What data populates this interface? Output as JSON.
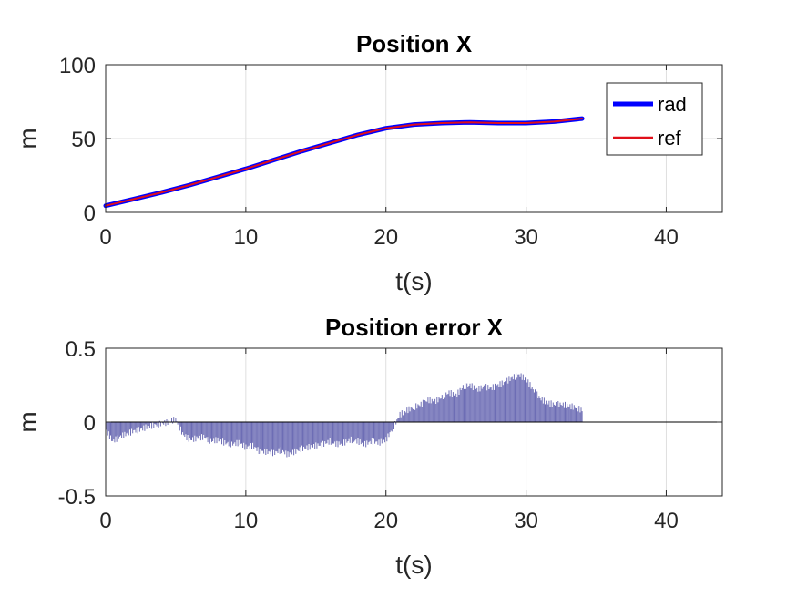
{
  "chart_data": [
    {
      "type": "line",
      "title": "Position X",
      "xlabel": "t(s)",
      "ylabel": "m",
      "xlim": [
        0,
        44
      ],
      "ylim": [
        0,
        100
      ],
      "xticks": [
        "0",
        "10",
        "20",
        "30",
        "40"
      ],
      "yticks": [
        "0",
        "50",
        "100"
      ],
      "grid": true,
      "legend": "top-right",
      "series": [
        {
          "name": "rad",
          "color": "#0000ff",
          "x": [
            0,
            2,
            4,
            6,
            8,
            10,
            12,
            14,
            16,
            18,
            20,
            22,
            24,
            26,
            28,
            30,
            32,
            34
          ],
          "y": [
            4.5,
            9,
            13.5,
            18.5,
            24,
            29.5,
            35.5,
            41.5,
            47,
            52.5,
            57,
            59.5,
            60.5,
            61,
            60.5,
            60.5,
            61.5,
            63.5
          ]
        },
        {
          "name": "ref",
          "color": "#e0101a",
          "x": [
            0,
            2,
            4,
            6,
            8,
            10,
            12,
            14,
            16,
            18,
            20,
            22,
            24,
            26,
            28,
            30,
            32,
            34
          ],
          "y": [
            4.5,
            9,
            13.5,
            18.5,
            24,
            29.5,
            35.5,
            41.5,
            47,
            52.5,
            57,
            59.5,
            60.5,
            61,
            60.5,
            60.5,
            61.5,
            63.5
          ]
        }
      ]
    },
    {
      "type": "bar",
      "title": "Position error X",
      "xlabel": "t(s)",
      "ylabel": "m",
      "xlim": [
        0,
        44
      ],
      "ylim": [
        -0.5,
        0.5
      ],
      "xticks": [
        "0",
        "10",
        "20",
        "30",
        "40"
      ],
      "yticks": [
        "-0.5",
        "0",
        "0.5"
      ],
      "grid": true,
      "bar_color": "#6d6db5",
      "series": [
        {
          "x": [
            0,
            0.5,
            1,
            1.5,
            2,
            2.5,
            3,
            3.5,
            4,
            4.5,
            5,
            5.5,
            6,
            6.5,
            7,
            7.5,
            8,
            8.5,
            9,
            9.5,
            10,
            10.5,
            11,
            11.5,
            12,
            12.5,
            13,
            13.5,
            14,
            14.5,
            15,
            15.5,
            16,
            16.5,
            17,
            17.5,
            18,
            18.5,
            19,
            19.5,
            20,
            20.5,
            21,
            21.5,
            22,
            22.5,
            23,
            23.5,
            24,
            24.5,
            25,
            25.5,
            26,
            26.5,
            27,
            27.5,
            28,
            28.5,
            29,
            29.5,
            30,
            30.5,
            31,
            31.5,
            32,
            32.5,
            33,
            33.5,
            34
          ],
          "values": [
            -0.05,
            -0.13,
            -0.1,
            -0.08,
            -0.06,
            -0.05,
            -0.03,
            -0.02,
            -0.01,
            0.0,
            0.02,
            -0.08,
            -0.12,
            -0.11,
            -0.1,
            -0.13,
            -0.12,
            -0.14,
            -0.15,
            -0.14,
            -0.17,
            -0.16,
            -0.2,
            -0.2,
            -0.21,
            -0.19,
            -0.22,
            -0.2,
            -0.18,
            -0.17,
            -0.16,
            -0.15,
            -0.13,
            -0.15,
            -0.14,
            -0.12,
            -0.13,
            -0.15,
            -0.13,
            -0.14,
            -0.12,
            -0.04,
            0.05,
            0.08,
            0.1,
            0.12,
            0.15,
            0.14,
            0.17,
            0.2,
            0.18,
            0.24,
            0.25,
            0.22,
            0.24,
            0.23,
            0.25,
            0.27,
            0.3,
            0.32,
            0.29,
            0.22,
            0.16,
            0.13,
            0.12,
            0.12,
            0.11,
            0.1,
            0.08
          ]
        }
      ]
    }
  ]
}
